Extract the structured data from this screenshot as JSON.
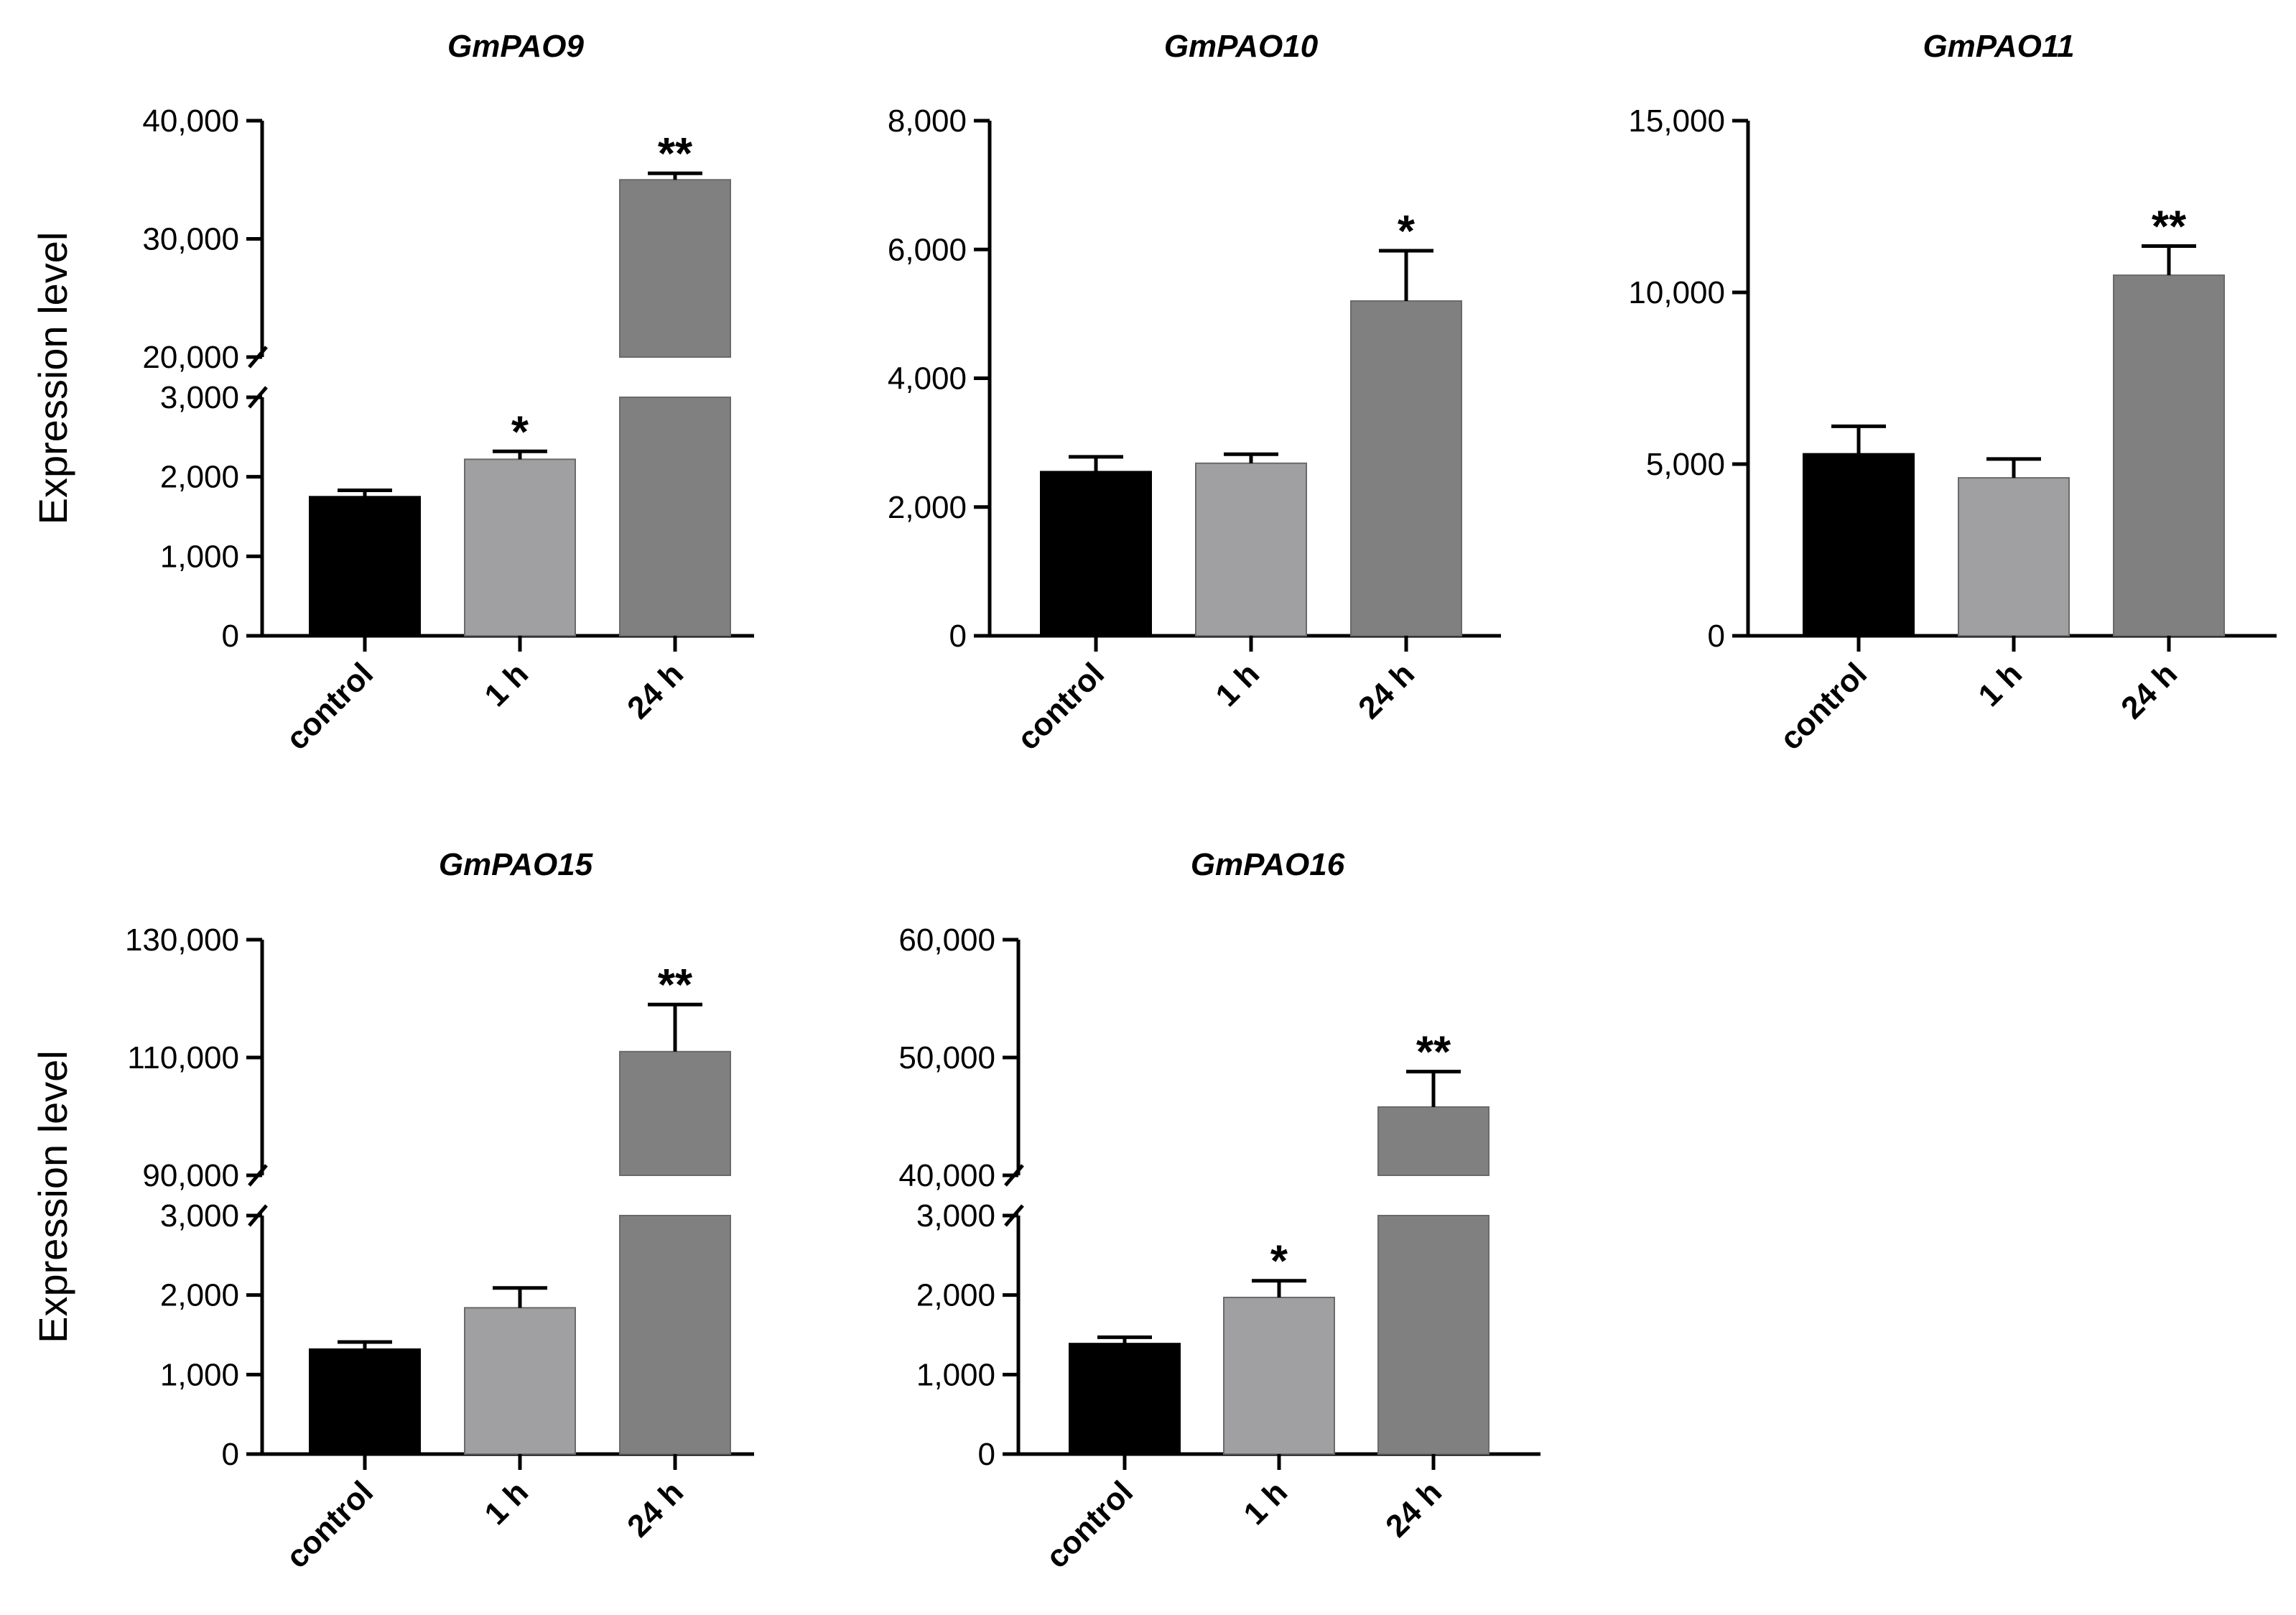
{
  "chart_data": [
    {
      "type": "bar",
      "title": "GmPAO9",
      "ylabel": "Expression level",
      "categories": [
        "control",
        "1 h",
        "24 h"
      ],
      "colors": [
        "#000000",
        "#a0a0a3",
        "#808080"
      ],
      "values": [
        1750,
        2220,
        35000
      ],
      "errors": [
        80,
        100,
        550
      ],
      "significance": [
        "",
        "*",
        "**"
      ],
      "axis_break": true,
      "lower_ylim": [
        0,
        3000
      ],
      "lower_ticks": [
        0,
        1000,
        2000,
        3000
      ],
      "lower_tick_labels": [
        "0",
        "1,000",
        "2,000",
        "3,000"
      ],
      "upper_ylim": [
        20000,
        40000
      ],
      "upper_ticks": [
        20000,
        30000,
        40000
      ],
      "upper_tick_labels": [
        "20,000",
        "30,000",
        "40,000"
      ]
    },
    {
      "type": "bar",
      "title": "GmPAO10",
      "ylabel": "",
      "categories": [
        "control",
        "1 h",
        "24 h"
      ],
      "colors": [
        "#000000",
        "#a0a0a3",
        "#808080"
      ],
      "values": [
        2550,
        2680,
        5200
      ],
      "errors": [
        230,
        140,
        780
      ],
      "significance": [
        "",
        "",
        "*"
      ],
      "axis_break": false,
      "ylim": [
        0,
        8000
      ],
      "ticks": [
        0,
        2000,
        4000,
        6000,
        8000
      ],
      "tick_labels": [
        "0",
        "2,000",
        "4,000",
        "6,000",
        "8,000"
      ]
    },
    {
      "type": "bar",
      "title": "GmPAO11",
      "ylabel": "",
      "categories": [
        "control",
        "1 h",
        "24 h"
      ],
      "colors": [
        "#000000",
        "#a0a0a3",
        "#808080"
      ],
      "values": [
        5300,
        4600,
        10500
      ],
      "errors": [
        800,
        550,
        850
      ],
      "significance": [
        "",
        "",
        "**"
      ],
      "axis_break": false,
      "ylim": [
        0,
        15000
      ],
      "ticks": [
        0,
        5000,
        10000,
        15000
      ],
      "tick_labels": [
        "0",
        "5,000",
        "10,000",
        "15,000"
      ]
    },
    {
      "type": "bar",
      "title": "GmPAO15",
      "ylabel": "Expression level",
      "categories": [
        "control",
        "1 h",
        "24 h"
      ],
      "colors": [
        "#000000",
        "#a0a0a3",
        "#808080"
      ],
      "values": [
        1320,
        1840,
        111000
      ],
      "errors": [
        90,
        250,
        8000
      ],
      "significance": [
        "",
        "",
        "**"
      ],
      "axis_break": true,
      "lower_ylim": [
        0,
        3000
      ],
      "lower_ticks": [
        0,
        1000,
        2000,
        3000
      ],
      "lower_tick_labels": [
        "0",
        "1,000",
        "2,000",
        "3,000"
      ],
      "upper_ylim": [
        90000,
        130000
      ],
      "upper_ticks": [
        90000,
        110000,
        130000
      ],
      "upper_tick_labels": [
        "90,000",
        "110,000",
        "130,000"
      ]
    },
    {
      "type": "bar",
      "title": "GmPAO16",
      "ylabel": "",
      "categories": [
        "control",
        "1 h",
        "24 h"
      ],
      "colors": [
        "#000000",
        "#a0a0a3",
        "#808080"
      ],
      "values": [
        1390,
        1970,
        45800
      ],
      "errors": [
        80,
        210,
        3000
      ],
      "significance": [
        "",
        "*",
        "**"
      ],
      "axis_break": true,
      "lower_ylim": [
        0,
        3000
      ],
      "lower_ticks": [
        0,
        1000,
        2000,
        3000
      ],
      "lower_tick_labels": [
        "0",
        "1,000",
        "2,000",
        "3,000"
      ],
      "upper_ylim": [
        40000,
        60000
      ],
      "upper_ticks": [
        40000,
        50000,
        60000
      ],
      "upper_tick_labels": [
        "40,000",
        "50,000",
        "60,000"
      ]
    }
  ]
}
